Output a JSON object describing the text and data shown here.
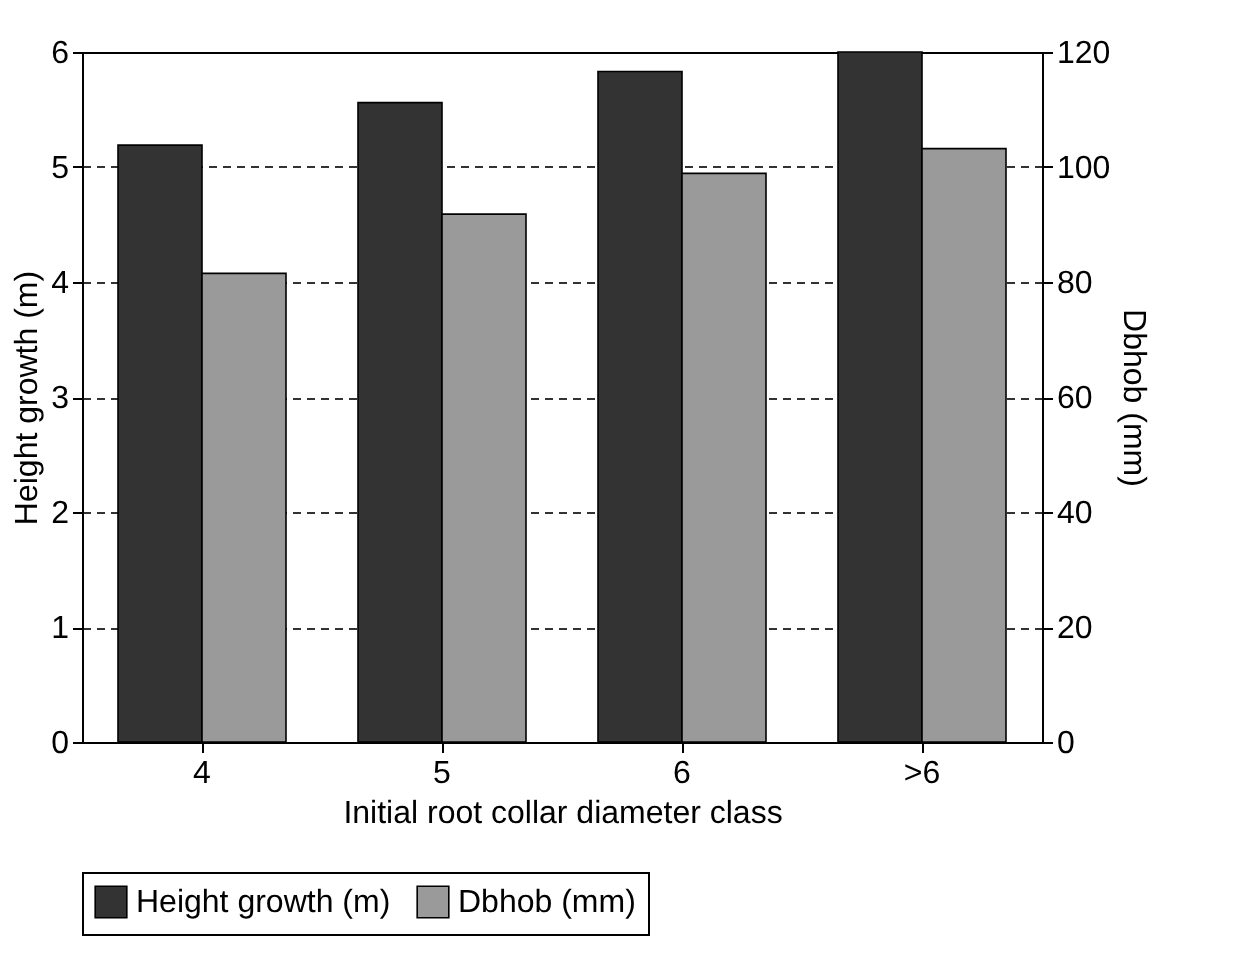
{
  "chart_data": {
    "type": "bar",
    "xlabel": "Initial root collar diameter class",
    "ylabel": "Height growth (m)",
    "y2label": "Dbhob (mm)",
    "categories": [
      "4",
      "5",
      "6",
      ">6"
    ],
    "series": [
      {
        "name": "Height growth (m)",
        "color": "#333333",
        "values": [
          5.19,
          5.56,
          5.83,
          6.0
        ]
      },
      {
        "name": "Dbhob (mm)",
        "color": "#9a9a9a",
        "axis": "y2",
        "values": [
          81.5,
          91.8,
          98.9,
          103.2
        ]
      }
    ],
    "ylim": [
      0,
      6
    ],
    "yticks": [
      0,
      1,
      2,
      3,
      4,
      5,
      6
    ],
    "y2lim": [
      0,
      120
    ],
    "y2ticks": [
      0,
      20,
      40,
      60,
      80,
      100,
      120
    ],
    "grid": "y",
    "legend": "bottom"
  }
}
